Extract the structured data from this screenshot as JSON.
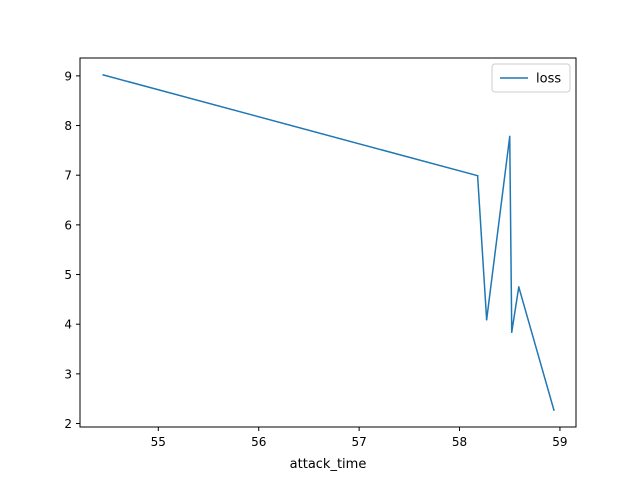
{
  "chart_data": {
    "type": "line",
    "xlabel": "attack_time",
    "ylabel": "",
    "xlim": [
      54.22,
      59.16
    ],
    "ylim": [
      1.93,
      9.36
    ],
    "xticks": [
      55,
      56,
      57,
      58,
      59
    ],
    "yticks": [
      2,
      3,
      4,
      5,
      6,
      7,
      8,
      9
    ],
    "grid": false,
    "legend_position": "top-right",
    "series": [
      {
        "name": "loss",
        "color": "#1f77b4",
        "x": [
          54.45,
          58.18,
          58.27,
          58.5,
          58.52,
          58.59,
          58.94
        ],
        "y": [
          9.02,
          6.99,
          4.09,
          7.78,
          3.84,
          4.75,
          2.27
        ]
      }
    ]
  }
}
